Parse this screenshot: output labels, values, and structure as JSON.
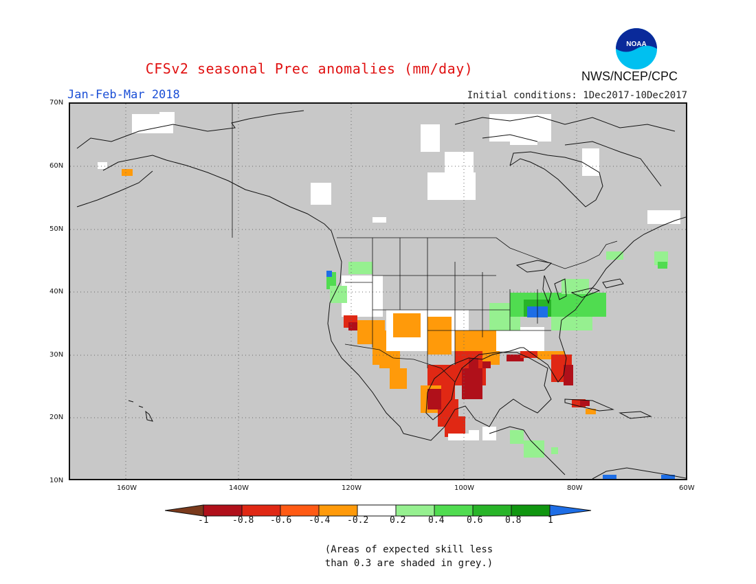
{
  "header": {
    "title": "CFSv2 seasonal Prec anomalies (mm/day)",
    "season": "Jan-Feb-Mar 2018",
    "initial_conditions": "Initial conditions: 1Dec2017-10Dec2017",
    "agency": "NWS/NCEP/CPC",
    "logo_text": "NOAA"
  },
  "map": {
    "region": "North America",
    "lon_range": [
      -170,
      -60
    ],
    "lat_range": [
      10,
      70
    ],
    "lat_labels": [
      "70N",
      "60N",
      "50N",
      "40N",
      "30N",
      "20N",
      "10N"
    ],
    "lon_labels": [
      "160W",
      "140W",
      "120W",
      "100W",
      "80W",
      "60W"
    ],
    "grey_color": "#c8c8c8"
  },
  "colorbar": {
    "labels": [
      "-1",
      "-0.8",
      "-0.6",
      "-0.4",
      "-0.2",
      "0.2",
      "0.4",
      "0.6",
      "0.8",
      "1"
    ],
    "colors": [
      "#7a3a1c",
      "#b0101a",
      "#e02814",
      "#ff5a14",
      "#ff9a0a",
      "#ffffff",
      "#96f090",
      "#50dc50",
      "#28b428",
      "#109610",
      "#1e6ee6"
    ]
  },
  "footnote": {
    "line1": "(Areas of expected skill less",
    "line2": "than 0.3 are shaded in grey.)"
  }
}
